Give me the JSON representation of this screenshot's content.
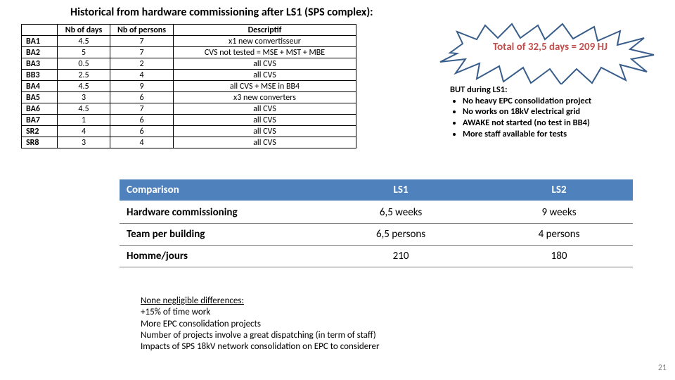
{
  "title": "Historical from hardware commissioning after LS1 (SPS complex):",
  "topTable": {
    "headers": {
      "c0": "",
      "c1": "Nb of days",
      "c2": "Nb of persons",
      "c3": "Descriptif"
    },
    "rows": [
      {
        "label": "BA1",
        "days": "4.5",
        "persons": "7",
        "desc": "x1 new convertisseur"
      },
      {
        "label": "BA2",
        "days": "5",
        "persons": "7",
        "desc": "CVS not tested = MSE + MST + MBE"
      },
      {
        "label": "BA3",
        "days": "0.5",
        "persons": "2",
        "desc": "all CVS"
      },
      {
        "label": "BB3",
        "days": "2.5",
        "persons": "4",
        "desc": "all CVS"
      },
      {
        "label": "BA4",
        "days": "4.5",
        "persons": "9",
        "desc": "all CVS + MSE in BB4"
      },
      {
        "label": "BA5",
        "days": "3",
        "persons": "6",
        "desc": "x3 new converters"
      },
      {
        "label": "BA6",
        "days": "4.5",
        "persons": "7",
        "desc": "all CVS"
      },
      {
        "label": "BA7",
        "days": "1",
        "persons": "6",
        "desc": "all CVS"
      },
      {
        "label": "SR2",
        "days": "4",
        "persons": "6",
        "desc": "all CVS"
      },
      {
        "label": "SR8",
        "days": "3",
        "persons": "4",
        "desc": "all CVS"
      }
    ]
  },
  "burst": {
    "text": "Total of 32,5 days = 209 HJ",
    "text_color": "#c0504d",
    "fill": "#ffffff",
    "stroke": "#385d8a",
    "stroke_width": 2
  },
  "but": {
    "lead": "BUT during LS1:",
    "items": [
      "No heavy EPC consolidation project",
      "No works on 18kV electrical grid",
      "AWAKE not started (no test in BB4)",
      "More staff available for tests"
    ]
  },
  "cmp": {
    "header_bg": "#4f81bd",
    "header_fg": "#ffffff",
    "headers": {
      "c0": "Comparison",
      "c1": "LS1",
      "c2": "LS2"
    },
    "rows": [
      {
        "label": "Hardware commissioning",
        "ls1": "6,5 weeks",
        "ls2": "9 weeks"
      },
      {
        "label": "Team per building",
        "ls1": "6,5 persons",
        "ls2": "4 persons"
      },
      {
        "label": "Homme/jours",
        "ls1": "210",
        "ls2": "180"
      }
    ]
  },
  "notes": {
    "lead": "None negligible differences:",
    "lines": [
      "+15% of time work",
      "More EPC consolidation projects",
      "Number of projects involve a great dispatching (in term of staff)",
      "Impacts of SPS 18kV network consolidation on EPC to considerer"
    ]
  },
  "pageNumber": "21"
}
